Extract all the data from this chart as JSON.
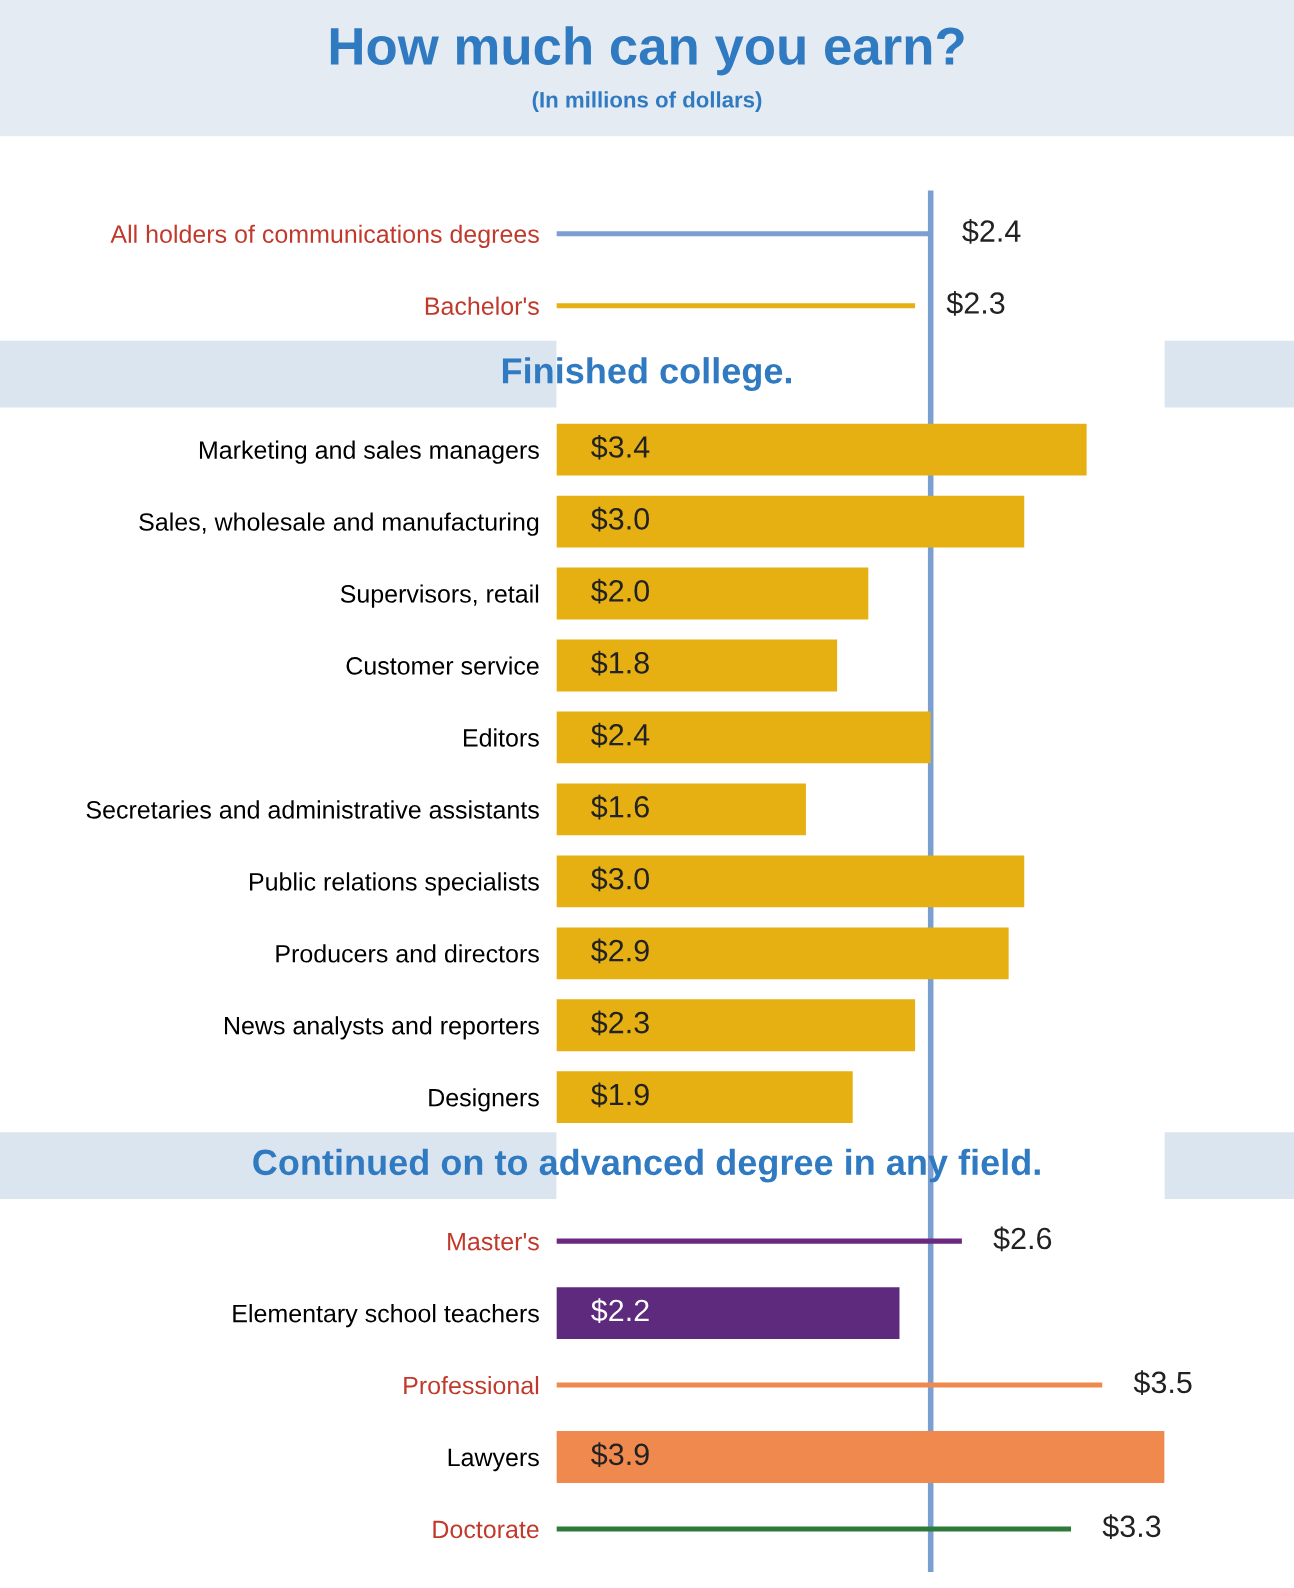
{
  "chart_data": {
    "type": "bar",
    "orientation": "horizontal",
    "title": "How much can you earn?",
    "subtitle": "(In millions of dollars)",
    "categories": [
      "All holders of communications degrees",
      "Bachelor's",
      "Marketing and sales managers",
      "Sales, wholesale and manufacturing",
      "Supervisors, retail",
      "Customer service",
      "Editors",
      "Secretaries and administrative assistants",
      "Public relations specialists",
      "Producers and directors",
      "News analysts and reporters",
      "Designers",
      "Master's",
      "Elementary school teachers",
      "Professional",
      "Lawyers",
      "Doctorate"
    ],
    "series": [
      {
        "values": [
          2.4,
          2.3,
          null,
          null,
          null,
          null,
          null,
          null,
          null,
          null,
          null,
          null,
          2.6,
          null,
          3.5,
          null,
          3.3
        ],
        "colors": [
          "#7a9fd0",
          "#e6b012",
          null,
          null,
          null,
          null,
          null,
          null,
          null,
          null,
          null,
          null,
          "#6a2a80",
          null,
          "#f0894e",
          null,
          "#2e7a3a"
        ],
        "value_labels": [
          "$2.4",
          "$2.3",
          null,
          null,
          null,
          null,
          null,
          null,
          null,
          null,
          null,
          null,
          "$2.6",
          null,
          "$3.5",
          null,
          "$3.3"
        ]
      },
      {
        "values": [
          null,
          null,
          3.4,
          3.0,
          2.0,
          1.8,
          2.4,
          1.6,
          3.0,
          2.9,
          2.3,
          1.9,
          null,
          2.2,
          null,
          3.9,
          null
        ],
        "colors": [
          null,
          null,
          "#e6b012",
          "#e6b012",
          "#e6b012",
          "#e6b012",
          "#e6b012",
          "#e6b012",
          "#e6b012",
          "#e6b012",
          "#e6b012",
          "#e6b012",
          null,
          "#5e2a7e",
          null,
          "#f0894e",
          null
        ],
        "value_labels": [
          null,
          null,
          "$3.4",
          "$3.0",
          "$2.0",
          "$1.8",
          "$2.4",
          "$1.6",
          "$3.0",
          "$2.9",
          "$2.3",
          "$1.9",
          null,
          "$2.2",
          null,
          "$3.9",
          null
        ]
      }
    ],
    "annotations": [
      "Finished college.",
      "Continued on to advanced degree in any field."
    ],
    "ref_lines": [
      {
        "axis": "x",
        "value": 2.4,
        "color": "#7a9fd0"
      }
    ]
  }
}
